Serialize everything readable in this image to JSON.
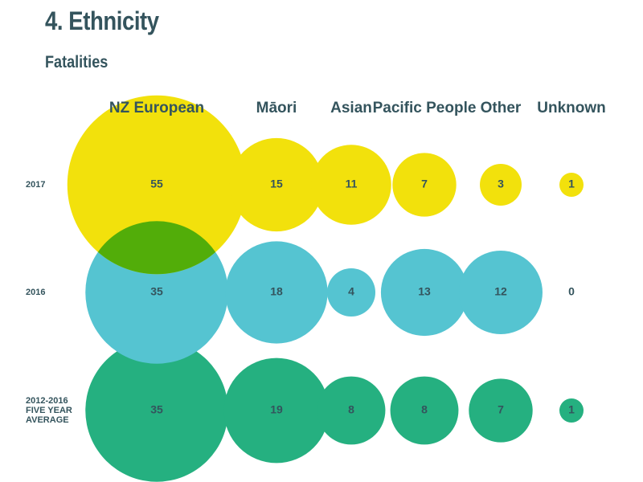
{
  "page": {
    "title": "4. Ethnicity",
    "subtitle": "Fatalities"
  },
  "chart_data": {
    "type": "bubble",
    "categories": [
      "NZ European",
      "Māori",
      "Asian",
      "Pacific People",
      "Other",
      "Unknown"
    ],
    "series": [
      {
        "name": "2017",
        "label_lines": [
          "2017"
        ],
        "values": [
          55,
          15,
          11,
          7,
          3,
          1
        ],
        "color": "#f2e10c"
      },
      {
        "name": "2016",
        "label_lines": [
          "2016"
        ],
        "values": [
          35,
          18,
          4,
          13,
          12,
          0
        ],
        "color": "#55c4d1"
      },
      {
        "name": "2012-2016 FIVE YEAR AVERAGE",
        "label_lines": [
          "2012-2016",
          "FIVE YEAR",
          "AVERAGE"
        ],
        "values": [
          35,
          19,
          8,
          8,
          7,
          1
        ],
        "color": "#25b080"
      }
    ],
    "overlap_color": "#52ad09",
    "text_color": "#34545d",
    "bubble_area_proportional_to_value": true
  }
}
